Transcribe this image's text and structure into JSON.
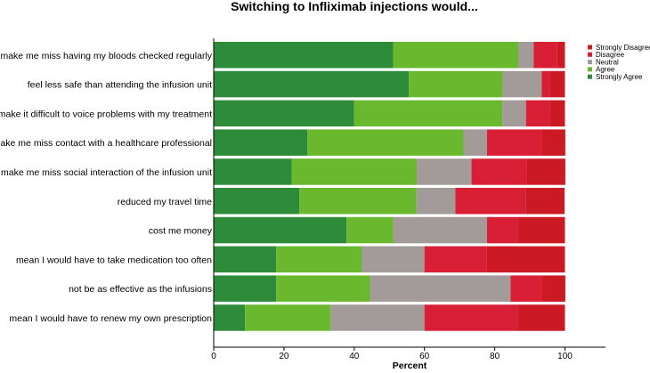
{
  "chart_data": {
    "type": "bar",
    "orientation": "horizontal",
    "stacked": true,
    "title": "Switching to Infliximab injections would...",
    "xlabel": "Percent",
    "ylabel": "",
    "xlim": [
      0,
      100
    ],
    "xticks": [
      "0",
      "20",
      "40",
      "60",
      "80",
      "100"
    ],
    "legend_position": "top-right",
    "categories": [
      "make me miss having my bloods checked regularly",
      "feel less safe than attending the infusion unit",
      "make it difficult to voice problems with my treatment",
      "make me miss contact with a healthcare professional",
      "make me miss social interaction of the infusion unit",
      "reduced my travel time",
      "cost me money",
      "mean I would have to take medication too often",
      "not be as effective as the infusions",
      "mean I would have to renew my own prescription"
    ],
    "series": [
      {
        "name": "Strongly Agree",
        "color": "#2e8b3a",
        "values": [
          51.1,
          55.6,
          40.0,
          26.7,
          22.2,
          24.4,
          37.8,
          17.8,
          17.8,
          8.9
        ]
      },
      {
        "name": "Agree",
        "color": "#6ab82e",
        "values": [
          35.6,
          26.7,
          42.2,
          44.4,
          35.6,
          33.3,
          13.3,
          24.4,
          26.7,
          24.4
        ]
      },
      {
        "name": "Neutral",
        "color": "#a39a9a",
        "values": [
          4.4,
          11.1,
          6.7,
          6.7,
          15.6,
          11.1,
          26.7,
          17.8,
          40.0,
          26.7
        ]
      },
      {
        "name": "Disagree",
        "color": "#d91f35",
        "values": [
          6.7,
          2.2,
          6.7,
          15.6,
          15.6,
          20.0,
          8.9,
          17.8,
          8.9,
          26.7
        ]
      },
      {
        "name": "Strongly Disagree",
        "color": "#cc1a24",
        "values": [
          2.2,
          4.4,
          4.4,
          6.7,
          11.1,
          11.1,
          13.3,
          22.2,
          6.7,
          13.3
        ]
      }
    ],
    "legend_order": [
      "Strongly Disagree",
      "Disagree",
      "Neutral",
      "Agree",
      "Strongly Agree"
    ]
  }
}
